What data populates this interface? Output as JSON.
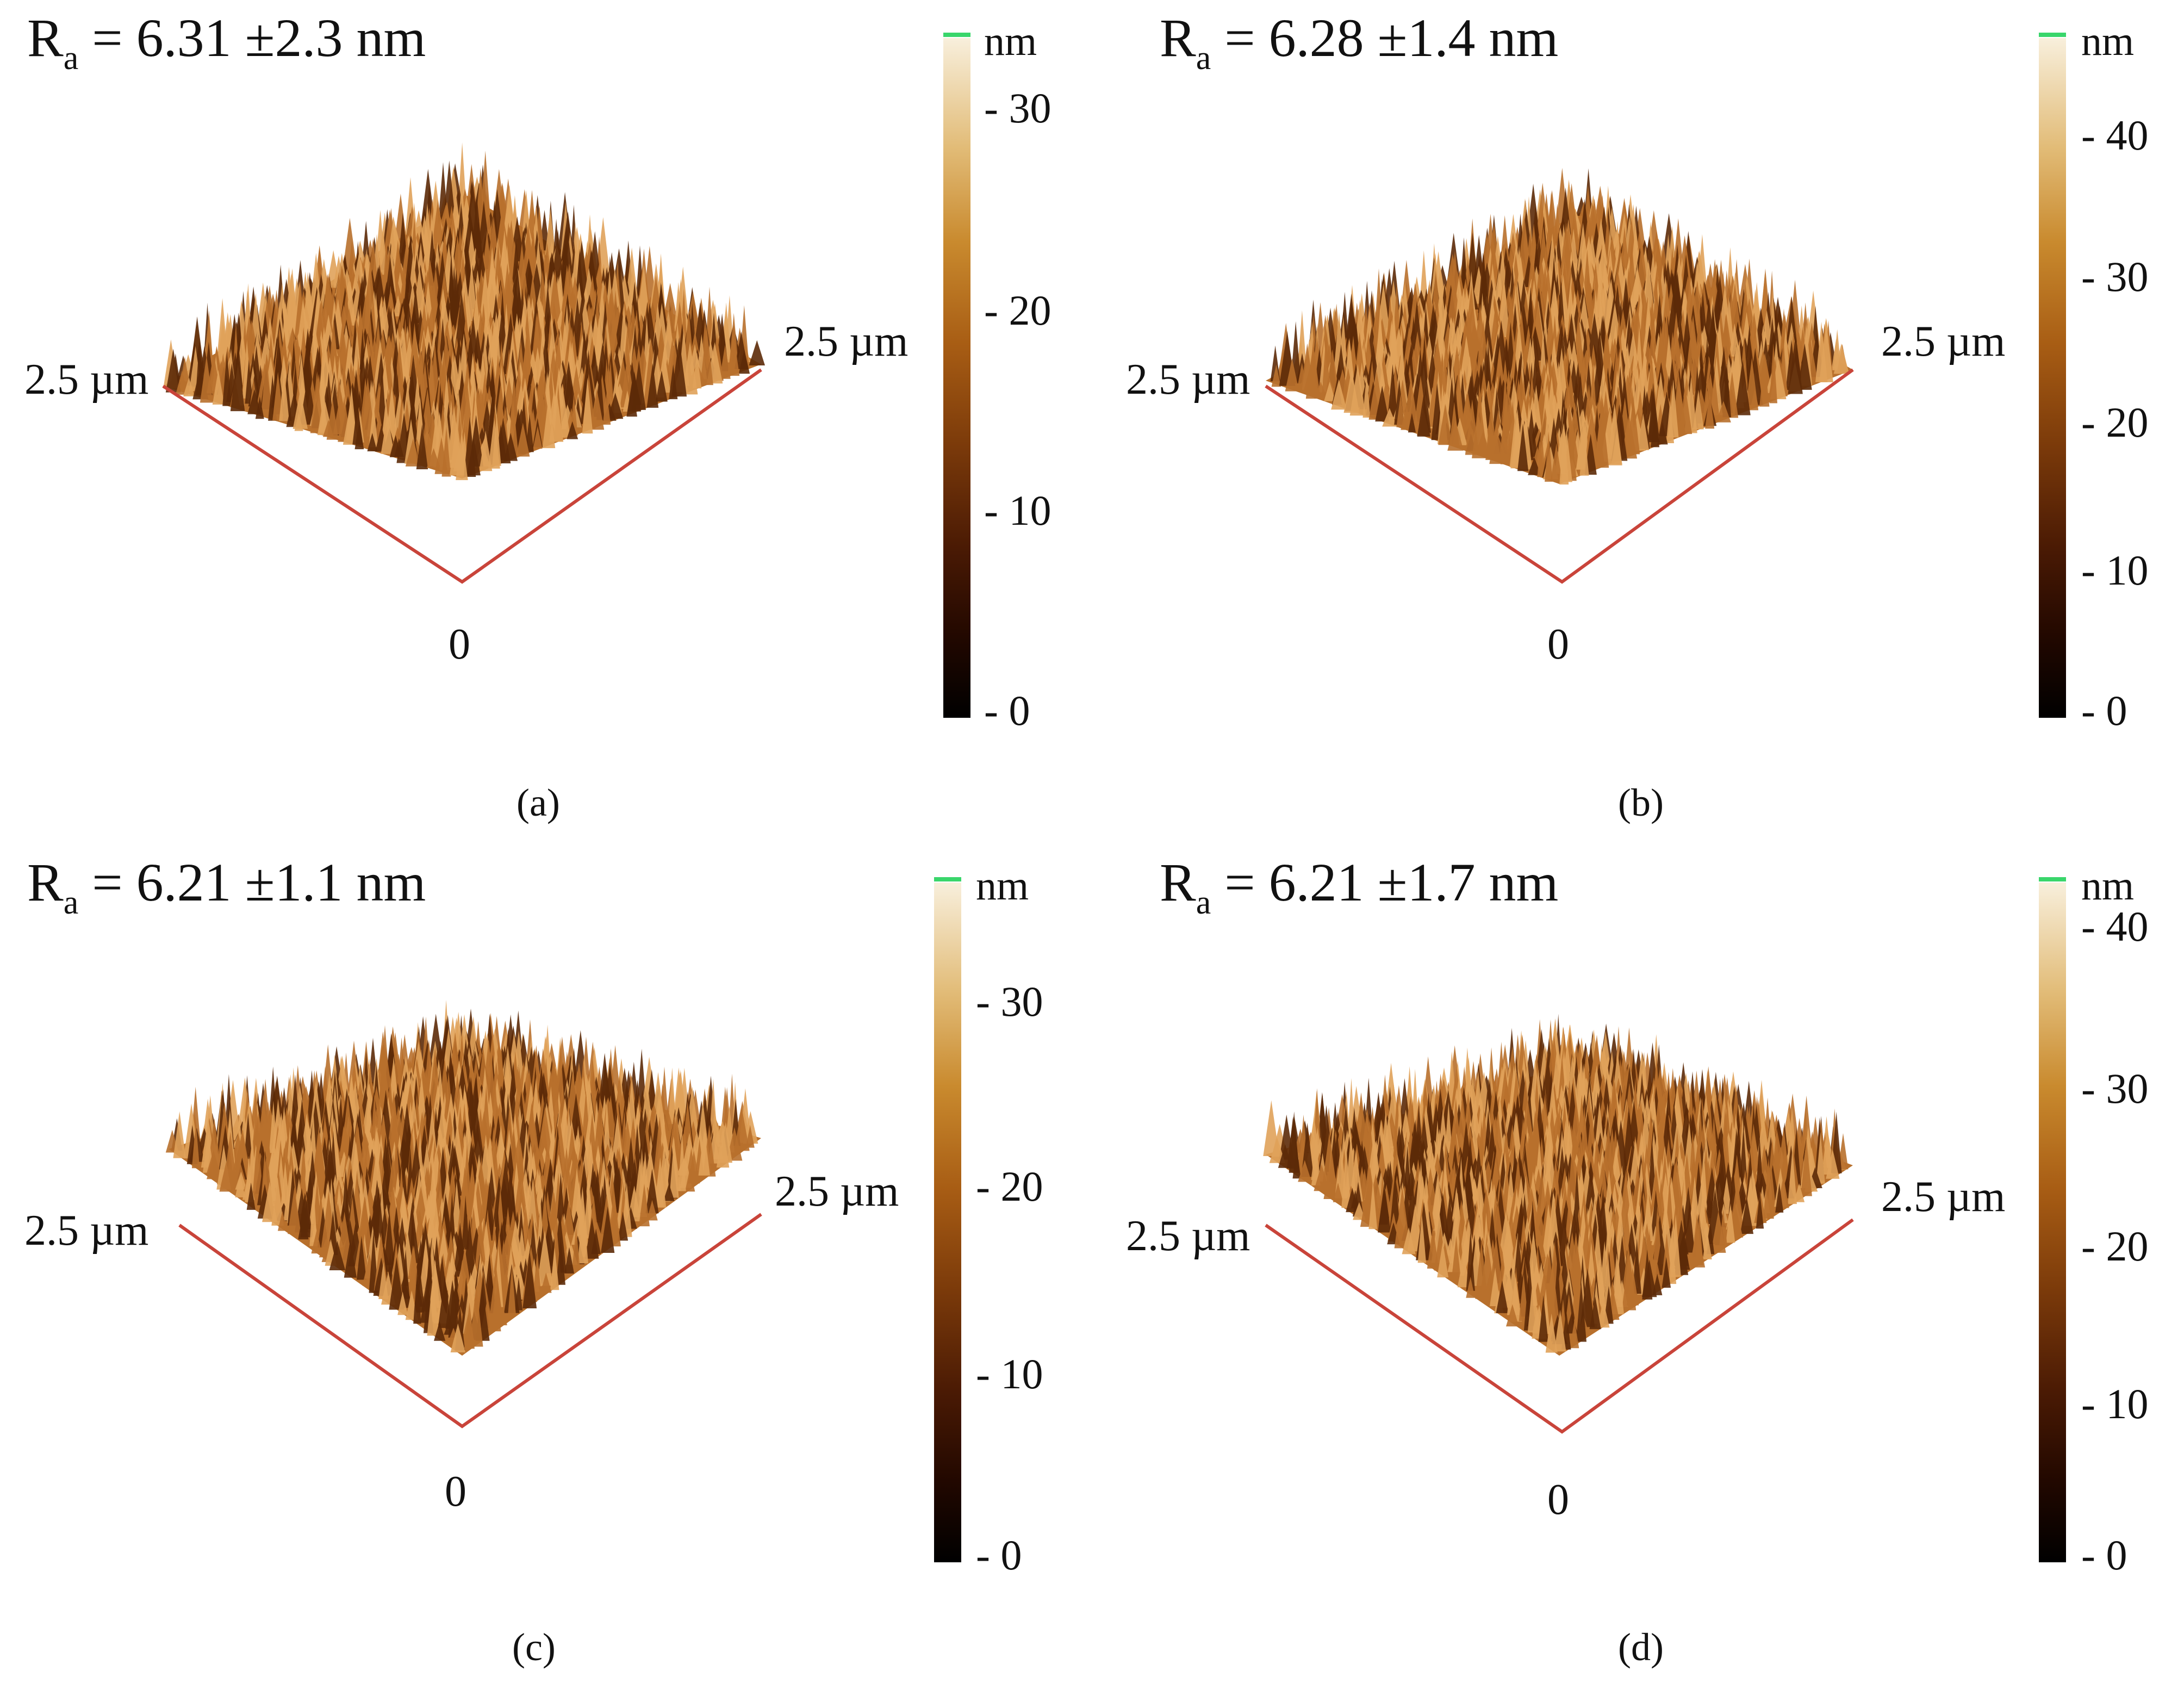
{
  "panels": [
    {
      "ra": {
        "symbol": "R",
        "subscript": "a",
        "value": "= 6.31 ±2.3 nm"
      },
      "axis_left": "2.5 µm",
      "axis_right": "2.5 µm",
      "origin": "0",
      "caption": "(a)",
      "colorbar": {
        "unit": "nm",
        "ticks": [
          "- 30",
          "- 20",
          "- 10",
          "- 0"
        ],
        "max": 34
      }
    },
    {
      "ra": {
        "symbol": "R",
        "subscript": "a",
        "value": "= 6.28 ±1.4 nm"
      },
      "axis_left": "2.5 µm",
      "axis_right": "2.5 µm",
      "origin": "0",
      "caption": "(b)",
      "colorbar": {
        "unit": "nm",
        "ticks": [
          "- 40",
          "- 30",
          "- 20",
          "- 10",
          "- 0"
        ],
        "max": 44
      }
    },
    {
      "ra": {
        "symbol": "R",
        "subscript": "a",
        "value": "= 6.21 ±1.1 nm"
      },
      "axis_left": "2.5 µm",
      "axis_right": "2.5 µm",
      "origin": "0",
      "caption": "(c)",
      "colorbar": {
        "unit": "nm",
        "ticks": [
          "- 30",
          "- 20",
          "- 10",
          "- 0"
        ],
        "max": 36
      }
    },
    {
      "ra": {
        "symbol": "R",
        "subscript": "a",
        "value": "= 6.21 ±1.7 nm"
      },
      "axis_left": "2.5 µm",
      "axis_right": "2.5 µm",
      "origin": "0",
      "caption": "(d)",
      "colorbar": {
        "unit": "nm",
        "ticks": [
          "- 40",
          "- 30",
          "- 20",
          "- 10",
          "- 0"
        ],
        "max": 41
      }
    }
  ],
  "colors": {
    "axis": "#c9443a",
    "surface_base": "#b8702c",
    "surface_light": "#e0a25a",
    "surface_dark": "#5c2a08",
    "colorbar_top": "#39d66b"
  }
}
